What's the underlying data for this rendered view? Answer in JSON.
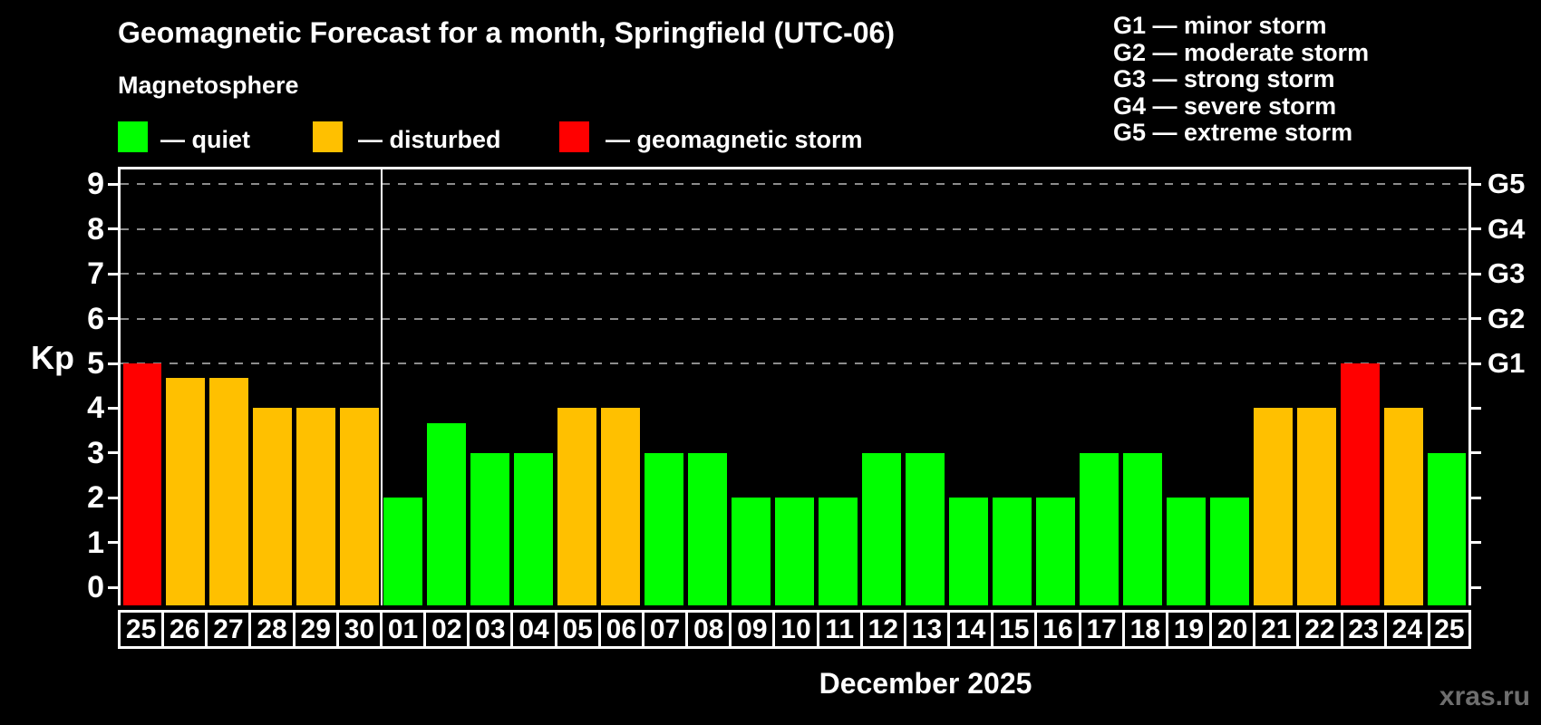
{
  "header": {
    "title": "Geomagnetic Forecast for a month, Springfield (UTC-06)",
    "subtitle": "Magnetosphere"
  },
  "kp_legend": {
    "items": [
      {
        "name": "quiet",
        "label": "— quiet",
        "status": "quiet"
      },
      {
        "name": "disturbed",
        "label": "— disturbed",
        "status": "disturbed"
      },
      {
        "name": "storm",
        "label": "— geomagnetic storm",
        "status": "storm"
      }
    ]
  },
  "storm_scale_legend": {
    "items": [
      {
        "label": "G1 — minor storm"
      },
      {
        "label": "G2 — moderate storm"
      },
      {
        "label": "G3 — strong storm"
      },
      {
        "label": "G4 — severe storm"
      },
      {
        "label": "G5 — extreme storm"
      }
    ]
  },
  "chart_data": {
    "type": "bar",
    "title": "Geomagnetic Forecast for a month, Springfield (UTC-06)",
    "ylabel": "Kp",
    "xlabel": "December 2025",
    "ylim": [
      0,
      9
    ],
    "yticks": [
      0,
      1,
      2,
      3,
      4,
      5,
      6,
      7,
      8,
      9
    ],
    "grid_levels": [
      5,
      6,
      7,
      8,
      9
    ],
    "grid_style": "dashed",
    "legend_position": "top",
    "right_axis": [
      {
        "level": 5,
        "label": "G1"
      },
      {
        "level": 6,
        "label": "G2"
      },
      {
        "level": 7,
        "label": "G3"
      },
      {
        "level": 8,
        "label": "G4"
      },
      {
        "level": 9,
        "label": "G5"
      }
    ],
    "month_separator_after_index": 5,
    "categories": [
      "25",
      "26",
      "27",
      "28",
      "29",
      "30",
      "01",
      "02",
      "03",
      "04",
      "05",
      "06",
      "07",
      "08",
      "09",
      "10",
      "11",
      "12",
      "13",
      "14",
      "15",
      "16",
      "17",
      "18",
      "19",
      "20",
      "21",
      "22",
      "23",
      "24",
      "25"
    ],
    "values": [
      5,
      4.67,
      4.67,
      4,
      4,
      4,
      2,
      3.67,
      3,
      3,
      4,
      4,
      3,
      3,
      2,
      2,
      2,
      3,
      3,
      2,
      2,
      2,
      3,
      3,
      2,
      2,
      4,
      4,
      5,
      4,
      3
    ],
    "statuses": [
      "storm",
      "disturbed",
      "disturbed",
      "disturbed",
      "disturbed",
      "disturbed",
      "quiet",
      "quiet",
      "quiet",
      "quiet",
      "disturbed",
      "disturbed",
      "quiet",
      "quiet",
      "quiet",
      "quiet",
      "quiet",
      "quiet",
      "quiet",
      "quiet",
      "quiet",
      "quiet",
      "quiet",
      "quiet",
      "quiet",
      "quiet",
      "disturbed",
      "disturbed",
      "storm",
      "disturbed",
      "quiet"
    ],
    "status_colors": {
      "quiet": "#00ff00",
      "disturbed": "#ffc000",
      "storm": "#ff0000"
    }
  },
  "footer": {
    "month_label": "December 2025",
    "watermark": "xras.ru"
  }
}
